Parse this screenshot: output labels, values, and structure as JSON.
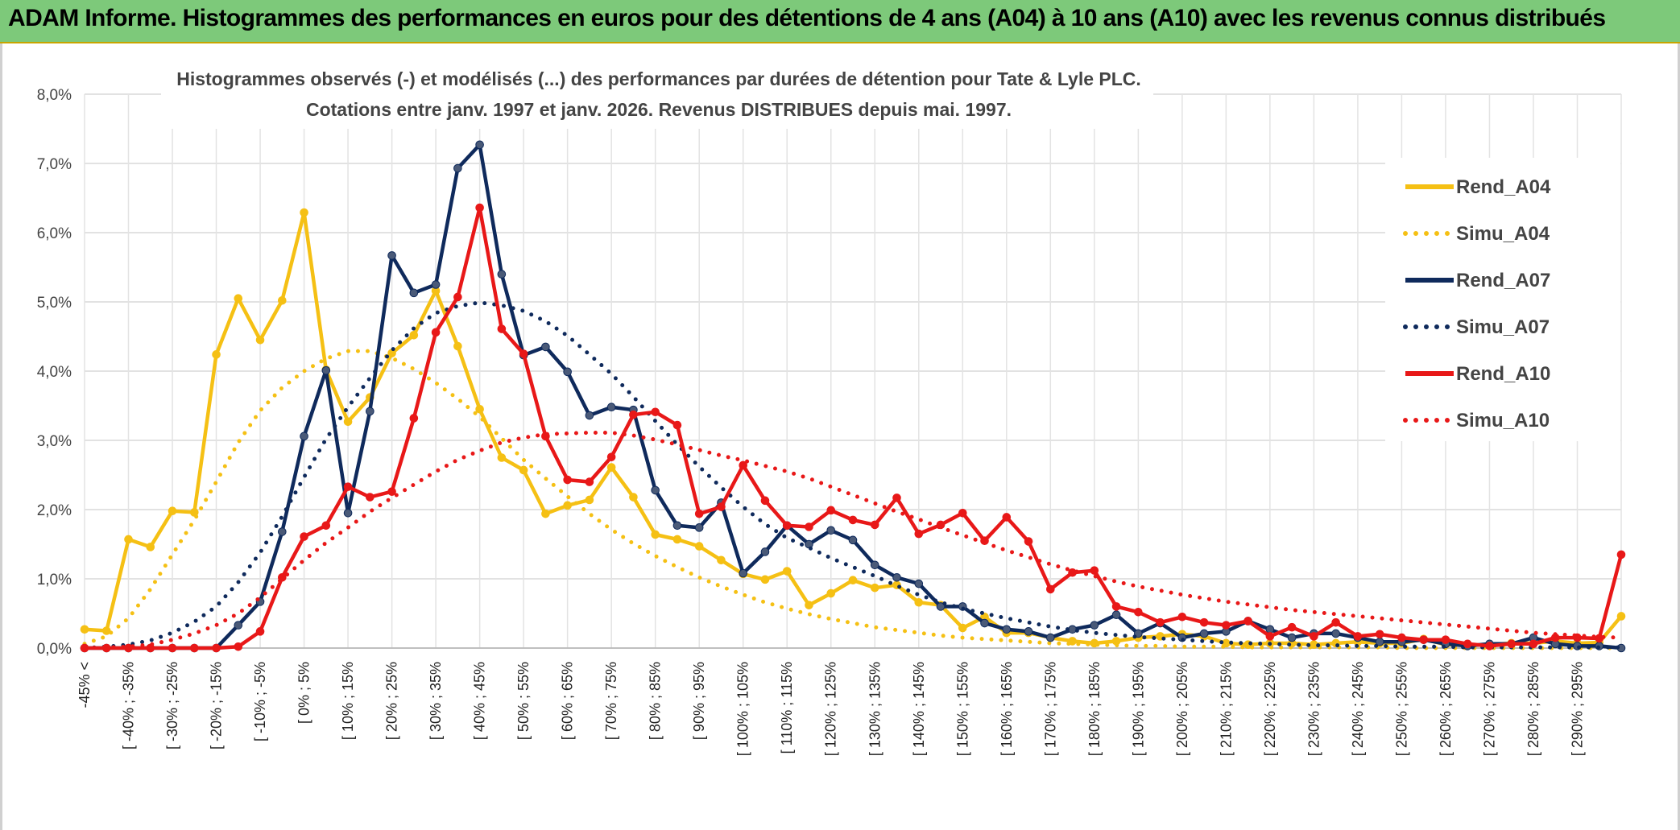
{
  "banner": {
    "title": "ADAM Informe. Histogrammes des performances en euros pour des détentions de 4 ans (A04) à 10 ans (A10) avec les revenus connus distribués"
  },
  "chart_data": {
    "type": "line",
    "title": "Histogrammes observés (-) et modélisés (...) des performances par durées de détention pour Tate & Lyle PLC.",
    "subtitle": "Cotations entre janv. 1997 et janv. 2026. Revenus DISTRIBUES depuis mai. 1997.",
    "ylim": [
      0,
      8
    ],
    "y_ticks": [
      "0,0%",
      "1,0%",
      "2,0%",
      "3,0%",
      "4,0%",
      "5,0%",
      "6,0%",
      "7,0%",
      "8,0%"
    ],
    "grid": true,
    "legend_position": "right",
    "x_labels": [
      "-45% <",
      "[ -40% ; -35%",
      "[ -30% ; -25%",
      "[ -20% ; -15%",
      "[ -10% ; -5%",
      "[ 0% ; 5%",
      "[ 10% ; 15%",
      "[ 20% ; 25%",
      "[ 30% ; 35%",
      "[ 40% ; 45%",
      "[ 50% ; 55%",
      "[ 60% ; 65%",
      "[ 70% ; 75%",
      "[ 80% ; 85%",
      "[ 90% ; 95%",
      "[ 100% ; 105%",
      "[ 110% ; 115%",
      "[ 120% ; 125%",
      "[ 130% ; 135%",
      "[ 140% ; 145%",
      "[ 150% ; 155%",
      "[ 160% ; 165%",
      "[ 170% ; 175%",
      "[ 180% ; 185%",
      "[ 190% ; 195%",
      "[ 200% ; 205%",
      "[ 210% ; 215%",
      "[ 220% ; 225%",
      "[ 230% ; 235%",
      "[ 240% ; 245%",
      "[ 250% ; 255%",
      "[ 260% ; 265%",
      "[ 270% ; 275%",
      "[ 280% ; 285%",
      "[ 290% ; 295%"
    ],
    "series": [
      {
        "name": "Rend_A04",
        "color": "#f5c014",
        "style": "solid",
        "values": [
          0.27,
          0.25,
          1.57,
          1.46,
          1.98,
          1.96,
          4.24,
          5.05,
          4.45,
          5.02,
          6.29,
          4.02,
          3.27,
          3.62,
          4.26,
          4.52,
          5.16,
          4.36,
          3.45,
          2.75,
          2.57,
          1.94,
          2.06,
          2.14,
          2.61,
          2.18,
          1.64,
          1.57,
          1.47,
          1.27,
          1.07,
          0.99,
          1.11,
          0.62,
          0.79,
          0.98,
          0.87,
          0.91,
          0.66,
          0.62,
          0.29,
          0.45,
          0.22,
          0.22,
          0.15,
          0.1,
          0.07,
          0.1,
          0.15,
          0.17,
          0.2,
          0.17,
          0.07,
          0.05,
          0.07,
          0.07,
          0.05,
          0.07,
          0.09,
          0.07,
          0.07,
          0.13,
          0.05,
          0.04,
          0.05,
          0.07,
          0.07,
          0.1,
          0.07,
          0.08,
          0.46
        ]
      },
      {
        "name": "Simu_A04",
        "color": "#f5c014",
        "style": "dotted",
        "values": [
          0.06,
          0.17,
          0.43,
          0.85,
          1.35,
          1.85,
          2.4,
          2.97,
          3.43,
          3.76,
          4.0,
          4.18,
          4.29,
          4.29,
          4.19,
          4.03,
          3.83,
          3.6,
          3.34,
          3.03,
          2.72,
          2.45,
          2.19,
          1.94,
          1.71,
          1.51,
          1.33,
          1.17,
          1.02,
          0.89,
          0.77,
          0.66,
          0.57,
          0.49,
          0.42,
          0.36,
          0.3,
          0.26,
          0.22,
          0.18,
          0.15,
          0.13,
          0.11,
          0.09,
          0.07,
          0.06,
          0.05,
          0.04,
          0.03,
          0.03,
          0.02,
          0.02,
          0.02,
          0.01,
          0.01,
          0.01,
          0.01,
          0.01,
          0.01,
          0.01,
          0.0,
          0.0,
          0.0,
          0.0,
          0.0,
          0.0,
          0.0,
          0.0,
          0.0,
          0.0,
          0.0
        ]
      },
      {
        "name": "Rend_A07",
        "color": "#0f2a5c",
        "style": "solid",
        "values": [
          0.0,
          0.0,
          0.0,
          0.0,
          0.0,
          0.0,
          0.0,
          0.33,
          0.67,
          1.68,
          3.06,
          4.01,
          1.95,
          3.42,
          5.67,
          5.13,
          5.25,
          6.93,
          7.27,
          5.4,
          4.23,
          4.35,
          3.99,
          3.36,
          3.48,
          3.44,
          2.28,
          1.77,
          1.74,
          2.1,
          1.08,
          1.39,
          1.77,
          1.5,
          1.7,
          1.56,
          1.2,
          1.02,
          0.93,
          0.6,
          0.6,
          0.36,
          0.27,
          0.24,
          0.15,
          0.27,
          0.33,
          0.48,
          0.21,
          0.36,
          0.15,
          0.21,
          0.24,
          0.39,
          0.27,
          0.15,
          0.21,
          0.21,
          0.15,
          0.09,
          0.09,
          0.12,
          0.06,
          0.03,
          0.06,
          0.06,
          0.15,
          0.06,
          0.03,
          0.03,
          0.0
        ]
      },
      {
        "name": "Simu_A07",
        "color": "#0f2a5c",
        "style": "dotted",
        "values": [
          0.0,
          0.02,
          0.05,
          0.11,
          0.22,
          0.38,
          0.6,
          0.95,
          1.38,
          1.9,
          2.47,
          3.02,
          3.48,
          3.9,
          4.3,
          4.62,
          4.84,
          4.94,
          4.99,
          4.95,
          4.87,
          4.72,
          4.51,
          4.24,
          3.96,
          3.63,
          3.28,
          2.94,
          2.62,
          2.32,
          2.04,
          1.79,
          1.59,
          1.45,
          1.3,
          1.17,
          1.04,
          0.9,
          0.77,
          0.66,
          0.57,
          0.5,
          0.43,
          0.37,
          0.31,
          0.26,
          0.22,
          0.19,
          0.16,
          0.14,
          0.12,
          0.1,
          0.08,
          0.07,
          0.06,
          0.05,
          0.04,
          0.04,
          0.03,
          0.03,
          0.02,
          0.02,
          0.02,
          0.01,
          0.01,
          0.01,
          0.01,
          0.01,
          0.01,
          0.01,
          0.01
        ]
      },
      {
        "name": "Rend_A10",
        "color": "#e81818",
        "style": "solid",
        "values": [
          0.0,
          0.0,
          0.0,
          0.0,
          0.0,
          0.0,
          0.0,
          0.02,
          0.24,
          1.02,
          1.61,
          1.77,
          2.33,
          2.18,
          2.26,
          3.32,
          4.56,
          5.07,
          6.36,
          4.61,
          4.25,
          3.06,
          2.43,
          2.4,
          2.76,
          3.37,
          3.41,
          3.22,
          1.94,
          2.04,
          2.64,
          2.13,
          1.77,
          1.75,
          1.99,
          1.85,
          1.78,
          2.17,
          1.65,
          1.78,
          1.95,
          1.55,
          1.89,
          1.54,
          0.85,
          1.09,
          1.12,
          0.6,
          0.52,
          0.37,
          0.45,
          0.37,
          0.33,
          0.39,
          0.17,
          0.3,
          0.17,
          0.37,
          0.17,
          0.2,
          0.15,
          0.12,
          0.12,
          0.06,
          0.03,
          0.06,
          0.06,
          0.15,
          0.15,
          0.14,
          1.35
        ]
      },
      {
        "name": "Simu_A10",
        "color": "#e81818",
        "style": "dotted",
        "values": [
          0.0,
          0.01,
          0.02,
          0.05,
          0.12,
          0.21,
          0.33,
          0.5,
          0.73,
          1.0,
          1.27,
          1.52,
          1.74,
          1.97,
          2.17,
          2.36,
          2.55,
          2.72,
          2.85,
          2.97,
          3.04,
          3.09,
          3.1,
          3.11,
          3.11,
          3.07,
          3.01,
          2.94,
          2.86,
          2.78,
          2.71,
          2.63,
          2.55,
          2.45,
          2.33,
          2.21,
          2.09,
          1.97,
          1.86,
          1.74,
          1.63,
          1.52,
          1.41,
          1.31,
          1.21,
          1.12,
          1.04,
          0.96,
          0.89,
          0.83,
          0.77,
          0.72,
          0.67,
          0.63,
          0.59,
          0.55,
          0.52,
          0.49,
          0.46,
          0.43,
          0.4,
          0.37,
          0.34,
          0.31,
          0.28,
          0.25,
          0.22,
          0.2,
          0.18,
          0.16,
          0.15
        ]
      }
    ]
  }
}
